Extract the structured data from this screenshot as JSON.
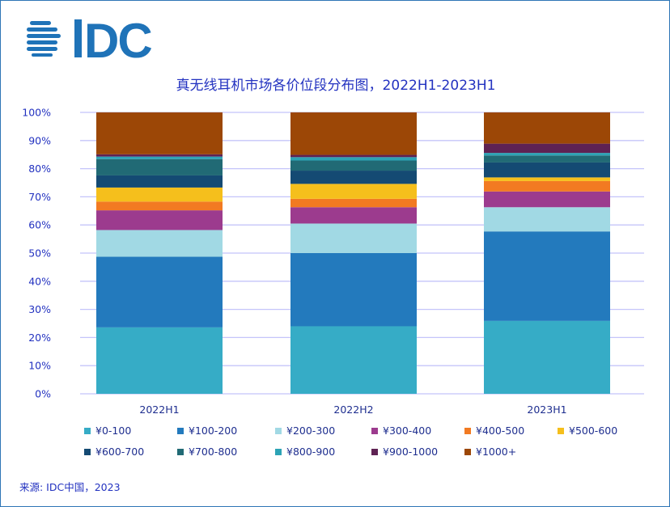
{
  "logo": {
    "text": "IDC",
    "color": "#1F73B8"
  },
  "chart_data": {
    "type": "bar",
    "stacked": true,
    "title": "真无线耳机市场各价位段分布图，2022H1-2023H1",
    "categories": [
      "2022H1",
      "2022H2",
      "2023H1"
    ],
    "ylim": [
      0,
      100
    ],
    "yticks": [
      "0%",
      "10%",
      "20%",
      "30%",
      "40%",
      "50%",
      "60%",
      "70%",
      "80%",
      "90%",
      "100%"
    ],
    "grid": true,
    "legend_position": "bottom",
    "series": [
      {
        "name": "¥0-100",
        "color": "#36ACC6",
        "values": [
          23.6,
          24.0,
          25.9
        ]
      },
      {
        "name": "¥100-200",
        "color": "#237ABD",
        "values": [
          25.1,
          26.0,
          31.8
        ]
      },
      {
        "name": "¥200-300",
        "color": "#A1D9E4",
        "values": [
          9.5,
          10.5,
          8.6
        ]
      },
      {
        "name": "¥300-400",
        "color": "#9C3B8E",
        "values": [
          7.0,
          5.8,
          5.6
        ]
      },
      {
        "name": "¥400-500",
        "color": "#F27A22",
        "values": [
          3.1,
          3.0,
          3.7
        ]
      },
      {
        "name": "¥500-600",
        "color": "#F5BF1C",
        "values": [
          5.0,
          5.3,
          1.3
        ]
      },
      {
        "name": "¥600-700",
        "color": "#144A73",
        "values": [
          4.3,
          4.7,
          5.3
        ]
      },
      {
        "name": "¥700-800",
        "color": "#216A75",
        "values": [
          5.8,
          3.6,
          2.5
        ]
      },
      {
        "name": "¥800-900",
        "color": "#2CA3B5",
        "values": [
          0.9,
          1.2,
          0.9
        ]
      },
      {
        "name": "¥900-1000",
        "color": "#5E2253",
        "values": [
          0.8,
          0.8,
          3.3
        ]
      },
      {
        "name": "¥1000+",
        "color": "#9C4706",
        "values": [
          14.9,
          15.1,
          11.1
        ]
      }
    ]
  },
  "source": "来源: IDC中国，2023"
}
